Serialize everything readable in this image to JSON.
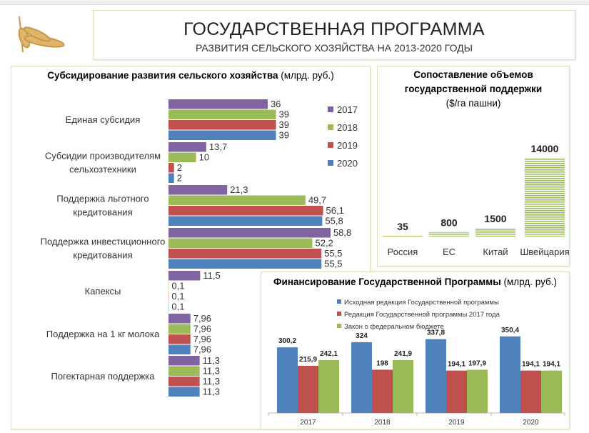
{
  "header": {
    "title": "ГОСУДАРСТВЕННАЯ ПРОГРАММА",
    "subtitle": "РАЗВИТИЯ СЕЛЬСКОГО ХОЗЯЙСТВА НА 2013-2020 ГОДЫ"
  },
  "colors": {
    "2017": "#8064a2",
    "2018": "#9bbb59",
    "2019": "#c0504d",
    "2020": "#4f81bd"
  },
  "chart_data": [
    {
      "type": "bar",
      "orientation": "horizontal",
      "title": "Субсидирование развития сельского хозяйства",
      "title_unit": "(млрд. руб.)",
      "categories": [
        [
          "Единая субсидия"
        ],
        [
          "Субсидии производителям",
          "сельхозтехники"
        ],
        [
          "Поддержка льготного",
          "кредитования"
        ],
        [
          "Поддержка инвестиционного",
          "кредитования"
        ],
        [
          "Капексы"
        ],
        [
          "Поддержка на 1 кг молока"
        ],
        [
          "Погектарная поддержка"
        ]
      ],
      "series": [
        {
          "name": "2017",
          "values": [
            36,
            13.7,
            21.3,
            58.8,
            11.5,
            7.96,
            11.3
          ],
          "labels": [
            "36",
            "13,7",
            "21,3",
            "58,8",
            "11,5",
            "7,96",
            "11,3"
          ]
        },
        {
          "name": "2018",
          "values": [
            39,
            10,
            49.7,
            52.2,
            0.1,
            7.96,
            11.3
          ],
          "labels": [
            "39",
            "10",
            "49,7",
            "52,2",
            "0,1",
            "7,96",
            "11,3"
          ]
        },
        {
          "name": "2019",
          "values": [
            39,
            2,
            56.1,
            55.5,
            0.1,
            7.96,
            11.3
          ],
          "labels": [
            "39",
            "2",
            "56,1",
            "55,5",
            "0,1",
            "7,96",
            "11,3"
          ]
        },
        {
          "name": "2020",
          "values": [
            39,
            2,
            55.8,
            55.5,
            0.1,
            7.96,
            11.3
          ],
          "labels": [
            "39",
            "2",
            "55,8",
            "55,5",
            "0,1",
            "7,96",
            "11,3"
          ]
        }
      ],
      "legend": "right"
    },
    {
      "type": "bar",
      "title": [
        "Сопоставление объемов",
        "государственной поддержки"
      ],
      "subtitle": "($/га пашни)",
      "categories": [
        "Россия",
        "ЕС",
        "Китай",
        "Швейцария"
      ],
      "values": [
        35,
        800,
        1500,
        14000
      ],
      "labels": [
        "35",
        "800",
        "1500",
        "14000"
      ]
    },
    {
      "type": "bar",
      "title": "Финансирование Государственной Программы",
      "title_unit": "(млрд. руб.)",
      "categories": [
        "2017",
        "2018",
        "2019",
        "2020"
      ],
      "series": [
        {
          "name": "Исходная редакция Государственной программы",
          "color": "#4f81bd",
          "values": [
            300.2,
            324,
            337.8,
            350.4
          ],
          "labels": [
            "300,2",
            "324",
            "337,8",
            "350,4"
          ]
        },
        {
          "name": "Редакция Государственной программы 2017 года",
          "color": "#c0504d",
          "values": [
            215.9,
            198,
            194.1,
            194.1
          ],
          "labels": [
            "215,9",
            "198",
            "194,1",
            "194,1"
          ]
        },
        {
          "name": "Закон о федеральном бюджете",
          "color": "#9bbb59",
          "values": [
            242.1,
            241.9,
            197.9,
            194.1
          ],
          "labels": [
            "242,1",
            "241,9",
            "197,9",
            "194,1"
          ]
        }
      ],
      "legend": "top"
    }
  ]
}
